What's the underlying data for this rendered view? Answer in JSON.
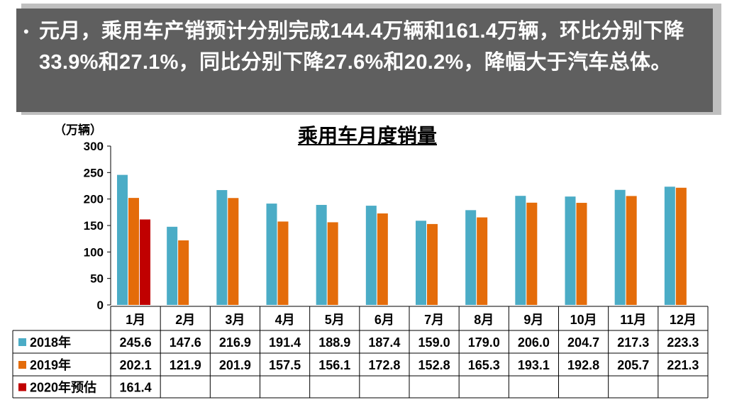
{
  "banner": {
    "bullet": "•",
    "text": "元月，乘用车产销预计分别完成144.4万辆和161.4万辆，环比分别下降33.9%和27.1%，同比分别下降27.6%和20.2%，降幅大于汽车总体。"
  },
  "chart_data": {
    "type": "bar",
    "title": "乘用车月度销量",
    "unit_label": "（万辆）",
    "ylim": [
      0,
      300
    ],
    "yticks": [
      "0",
      "50",
      "100",
      "150",
      "200",
      "250",
      "300"
    ],
    "categories": [
      "1月",
      "2月",
      "3月",
      "4月",
      "5月",
      "6月",
      "7月",
      "8月",
      "9月",
      "10月",
      "11月",
      "12月"
    ],
    "series": [
      {
        "name": "2018年",
        "color": "#4bacc6",
        "values": [
          245.6,
          147.6,
          216.9,
          191.4,
          188.9,
          187.4,
          159.0,
          179.0,
          206.0,
          204.7,
          217.3,
          223.3
        ],
        "labels": [
          "245.6",
          "147.6",
          "216.9",
          "191.4",
          "188.9",
          "187.4",
          "159.0",
          "179.0",
          "206.0",
          "204.7",
          "217.3",
          "223.3"
        ]
      },
      {
        "name": "2019年",
        "color": "#e46c0a",
        "values": [
          202.1,
          121.9,
          201.9,
          157.5,
          156.1,
          172.8,
          152.8,
          165.3,
          193.1,
          192.8,
          205.7,
          221.3
        ],
        "labels": [
          "202.1",
          "121.9",
          "201.9",
          "157.5",
          "156.1",
          "172.8",
          "152.8",
          "165.3",
          "193.1",
          "192.8",
          "205.7",
          "221.3"
        ]
      },
      {
        "name": "2020年预估",
        "color": "#c00000",
        "values": [
          161.4,
          null,
          null,
          null,
          null,
          null,
          null,
          null,
          null,
          null,
          null,
          null
        ],
        "labels": [
          "161.4",
          "",
          "",
          "",
          "",
          "",
          "",
          "",
          "",
          "",
          "",
          ""
        ]
      }
    ],
    "grid": false,
    "legend": "data-table"
  }
}
